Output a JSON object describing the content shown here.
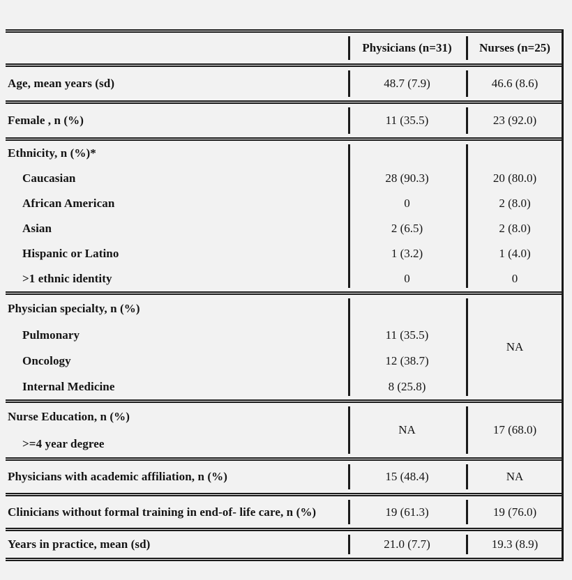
{
  "header": {
    "col_physicians": "Physicians (n=31)",
    "col_nurses": "Nurses (n=25)"
  },
  "rows": {
    "age": {
      "label": "Age, mean years (sd)",
      "physicians": "48.7 (7.9)",
      "nurses": "46.6 (8.6)"
    },
    "female": {
      "label": "Female , n (%)",
      "physicians": "11 (35.5)",
      "nurses": "23 (92.0)"
    },
    "ethnicity": {
      "label": "Ethnicity, n (%)*",
      "items": [
        {
          "label": "Caucasian",
          "physicians": "28 (90.3)",
          "nurses": "20 (80.0)"
        },
        {
          "label": "African American",
          "physicians": "0",
          "nurses": "2 (8.0)"
        },
        {
          "label": "Asian",
          "physicians": "2 (6.5)",
          "nurses": "2 (8.0)"
        },
        {
          "label": "Hispanic or Latino",
          "physicians": "1 (3.2)",
          "nurses": "1 (4.0)"
        },
        {
          "label": ">1 ethnic identity",
          "physicians": "0",
          "nurses": "0"
        }
      ]
    },
    "specialty": {
      "label": "Physician specialty, n (%)",
      "items": [
        {
          "label": "Pulmonary",
          "physicians": "11 (35.5)"
        },
        {
          "label": "Oncology",
          "physicians": "12 (38.7)"
        },
        {
          "label": "Internal Medicine",
          "physicians": "8 (25.8)"
        }
      ],
      "nurses": "NA"
    },
    "nurse_education": {
      "label": "Nurse Education, n (%)",
      "sublabel": ">=4 year degree",
      "physicians": "NA",
      "nurses": "17 (68.0)"
    },
    "academic": {
      "label": "Physicians with academic affiliation, n (%)",
      "physicians": "15 (48.4)",
      "nurses": "NA"
    },
    "training": {
      "label": "Clinicians without formal training in end-of- life care, n (%)",
      "physicians": "19 (61.3)",
      "nurses": "19 (76.0)"
    },
    "practice": {
      "label": "Years in practice, mean (sd)",
      "physicians": "21.0 (7.7)",
      "nurses": "19.3 (8.9)"
    }
  },
  "colors": {
    "background": "#f2f2f2",
    "rule": "#1a1a1a",
    "text": "#141414"
  }
}
